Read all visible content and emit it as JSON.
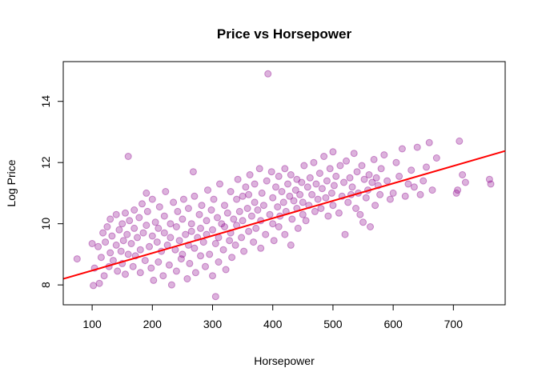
{
  "chart_data": {
    "type": "scatter",
    "title": "Price vs Horsepower",
    "xlabel": "Horsepower",
    "ylabel": "Log Price",
    "xlim": [
      52,
      786
    ],
    "ylim": [
      7.35,
      15.3
    ],
    "xticks": [
      100,
      200,
      300,
      400,
      500,
      600,
      700
    ],
    "yticks": [
      8,
      10,
      12,
      14
    ],
    "grid": false,
    "legend": "none",
    "point_color": "#8B008B",
    "point_opacity": 0.3,
    "regression_line": {
      "color": "#FF0000",
      "intercept": 7.9,
      "slope": 0.0057
    },
    "points": [
      [
        75,
        8.85
      ],
      [
        100,
        9.35
      ],
      [
        102,
        7.98
      ],
      [
        104,
        8.55
      ],
      [
        110,
        9.25
      ],
      [
        112,
        8.05
      ],
      [
        115,
        8.9
      ],
      [
        118,
        9.7
      ],
      [
        120,
        8.3
      ],
      [
        122,
        9.4
      ],
      [
        125,
        9.9
      ],
      [
        128,
        8.6
      ],
      [
        130,
        10.15
      ],
      [
        130,
        9.05
      ],
      [
        133,
        9.6
      ],
      [
        135,
        8.8
      ],
      [
        140,
        9.3
      ],
      [
        140,
        10.3
      ],
      [
        142,
        8.45
      ],
      [
        145,
        9.8
      ],
      [
        148,
        9.1
      ],
      [
        150,
        10.0
      ],
      [
        150,
        8.7
      ],
      [
        152,
        9.45
      ],
      [
        155,
        10.35
      ],
      [
        155,
        8.35
      ],
      [
        158,
        9.65
      ],
      [
        160,
        12.2
      ],
      [
        160,
        9.0
      ],
      [
        162,
        10.1
      ],
      [
        165,
        9.35
      ],
      [
        168,
        8.6
      ],
      [
        170,
        9.85
      ],
      [
        170,
        10.45
      ],
      [
        172,
        8.95
      ],
      [
        175,
        9.55
      ],
      [
        178,
        10.2
      ],
      [
        180,
        9.15
      ],
      [
        180,
        8.4
      ],
      [
        183,
        10.65
      ],
      [
        185,
        9.7
      ],
      [
        188,
        8.8
      ],
      [
        190,
        11.0
      ],
      [
        190,
        9.95
      ],
      [
        192,
        10.4
      ],
      [
        195,
        9.25
      ],
      [
        198,
        8.55
      ],
      [
        200,
        9.6
      ],
      [
        200,
        10.8
      ],
      [
        202,
        8.15
      ],
      [
        205,
        10.05
      ],
      [
        208,
        9.4
      ],
      [
        210,
        8.75
      ],
      [
        210,
        9.85
      ],
      [
        212,
        10.55
      ],
      [
        215,
        9.1
      ],
      [
        218,
        8.3
      ],
      [
        220,
        9.7
      ],
      [
        220,
        10.25
      ],
      [
        222,
        11.05
      ],
      [
        225,
        9.3
      ],
      [
        228,
        8.65
      ],
      [
        230,
        10.0
      ],
      [
        230,
        9.55
      ],
      [
        232,
        8.0
      ],
      [
        235,
        10.7
      ],
      [
        238,
        9.15
      ],
      [
        240,
        8.45
      ],
      [
        240,
        9.9
      ],
      [
        242,
        10.4
      ],
      [
        245,
        9.45
      ],
      [
        248,
        8.85
      ],
      [
        250,
        10.15
      ],
      [
        250,
        9.0
      ],
      [
        252,
        10.8
      ],
      [
        255,
        9.65
      ],
      [
        258,
        8.2
      ],
      [
        260,
        10.5
      ],
      [
        260,
        9.3
      ],
      [
        262,
        8.7
      ],
      [
        265,
        10.0
      ],
      [
        265,
        9.75
      ],
      [
        268,
        11.7
      ],
      [
        270,
        9.2
      ],
      [
        270,
        10.9
      ],
      [
        272,
        8.4
      ],
      [
        275,
        9.55
      ],
      [
        278,
        10.3
      ],
      [
        280,
        9.85
      ],
      [
        280,
        8.95
      ],
      [
        282,
        10.6
      ],
      [
        285,
        9.4
      ],
      [
        288,
        8.6
      ],
      [
        290,
        10.1
      ],
      [
        290,
        9.65
      ],
      [
        292,
        11.1
      ],
      [
        295,
        9.0
      ],
      [
        298,
        10.45
      ],
      [
        300,
        9.8
      ],
      [
        300,
        8.3
      ],
      [
        302,
        10.8
      ],
      [
        305,
        9.35
      ],
      [
        305,
        7.62
      ],
      [
        308,
        10.2
      ],
      [
        310,
        9.55
      ],
      [
        310,
        8.75
      ],
      [
        312,
        11.3
      ],
      [
        315,
        10.0
      ],
      [
        318,
        9.15
      ],
      [
        320,
        10.6
      ],
      [
        320,
        9.9
      ],
      [
        322,
        8.5
      ],
      [
        325,
        10.35
      ],
      [
        328,
        9.45
      ],
      [
        330,
        11.05
      ],
      [
        330,
        9.7
      ],
      [
        332,
        8.9
      ],
      [
        335,
        10.15
      ],
      [
        338,
        9.3
      ],
      [
        340,
        10.8
      ],
      [
        340,
        9.95
      ],
      [
        342,
        11.45
      ],
      [
        345,
        10.4
      ],
      [
        348,
        9.55
      ],
      [
        350,
        10.9
      ],
      [
        350,
        10.1
      ],
      [
        352,
        9.1
      ],
      [
        355,
        11.2
      ],
      [
        358,
        10.5
      ],
      [
        360,
        9.75
      ],
      [
        360,
        10.95
      ],
      [
        362,
        11.6
      ],
      [
        365,
        10.25
      ],
      [
        368,
        9.4
      ],
      [
        370,
        10.7
      ],
      [
        370,
        11.3
      ],
      [
        372,
        9.85
      ],
      [
        375,
        10.45
      ],
      [
        378,
        11.8
      ],
      [
        380,
        10.1
      ],
      [
        380,
        9.2
      ],
      [
        382,
        11.0
      ],
      [
        385,
        10.6
      ],
      [
        388,
        9.65
      ],
      [
        390,
        11.4
      ],
      [
        392,
        14.9
      ],
      [
        395,
        10.3
      ],
      [
        398,
        11.7
      ],
      [
        400,
        10.0
      ],
      [
        400,
        10.85
      ],
      [
        402,
        9.45
      ],
      [
        405,
        11.2
      ],
      [
        408,
        10.55
      ],
      [
        410,
        11.55
      ],
      [
        410,
        9.9
      ],
      [
        412,
        10.25
      ],
      [
        415,
        11.05
      ],
      [
        418,
        10.7
      ],
      [
        420,
        11.8
      ],
      [
        420,
        9.65
      ],
      [
        422,
        10.4
      ],
      [
        425,
        11.3
      ],
      [
        428,
        10.9
      ],
      [
        430,
        9.3
      ],
      [
        430,
        11.6
      ],
      [
        432,
        10.15
      ],
      [
        435,
        10.75
      ],
      [
        438,
        11.1
      ],
      [
        440,
        10.5
      ],
      [
        440,
        11.45
      ],
      [
        442,
        9.85
      ],
      [
        445,
        10.95
      ],
      [
        448,
        11.35
      ],
      [
        450,
        10.3
      ],
      [
        450,
        10.7
      ],
      [
        452,
        11.9
      ],
      [
        455,
        10.1
      ],
      [
        458,
        11.2
      ],
      [
        460,
        10.6
      ],
      [
        462,
        11.5
      ],
      [
        465,
        10.95
      ],
      [
        468,
        12.0
      ],
      [
        470,
        10.4
      ],
      [
        472,
        11.3
      ],
      [
        475,
        10.8
      ],
      [
        478,
        11.65
      ],
      [
        480,
        10.5
      ],
      [
        482,
        11.15
      ],
      [
        485,
        12.2
      ],
      [
        488,
        10.85
      ],
      [
        490,
        11.4
      ],
      [
        492,
        10.25
      ],
      [
        495,
        11.8
      ],
      [
        498,
        11.0
      ],
      [
        500,
        12.35
      ],
      [
        500,
        10.6
      ],
      [
        502,
        11.25
      ],
      [
        505,
        11.55
      ],
      [
        510,
        10.35
      ],
      [
        512,
        11.9
      ],
      [
        515,
        10.9
      ],
      [
        518,
        11.35
      ],
      [
        520,
        9.65
      ],
      [
        522,
        12.05
      ],
      [
        525,
        10.7
      ],
      [
        528,
        11.5
      ],
      [
        530,
        10.95
      ],
      [
        532,
        11.2
      ],
      [
        535,
        12.3
      ],
      [
        538,
        10.5
      ],
      [
        540,
        11.7
      ],
      [
        542,
        11.0
      ],
      [
        545,
        10.3
      ],
      [
        548,
        11.9
      ],
      [
        550,
        10.05
      ],
      [
        552,
        11.45
      ],
      [
        555,
        10.85
      ],
      [
        558,
        11.1
      ],
      [
        560,
        11.6
      ],
      [
        562,
        9.9
      ],
      [
        565,
        11.35
      ],
      [
        568,
        12.1
      ],
      [
        570,
        10.6
      ],
      [
        572,
        11.5
      ],
      [
        575,
        11.25
      ],
      [
        578,
        10.95
      ],
      [
        580,
        11.8
      ],
      [
        585,
        12.25
      ],
      [
        590,
        11.4
      ],
      [
        595,
        10.8
      ],
      [
        600,
        11.0
      ],
      [
        605,
        12.0
      ],
      [
        610,
        11.55
      ],
      [
        615,
        12.45
      ],
      [
        620,
        10.9
      ],
      [
        625,
        11.3
      ],
      [
        630,
        11.75
      ],
      [
        635,
        11.2
      ],
      [
        640,
        12.5
      ],
      [
        645,
        10.95
      ],
      [
        650,
        11.4
      ],
      [
        655,
        11.85
      ],
      [
        660,
        12.65
      ],
      [
        665,
        11.1
      ],
      [
        672,
        12.15
      ],
      [
        705,
        11.0
      ],
      [
        707,
        11.1
      ],
      [
        710,
        12.7
      ],
      [
        715,
        11.6
      ],
      [
        720,
        11.35
      ],
      [
        760,
        11.45
      ],
      [
        762,
        11.3
      ]
    ]
  }
}
